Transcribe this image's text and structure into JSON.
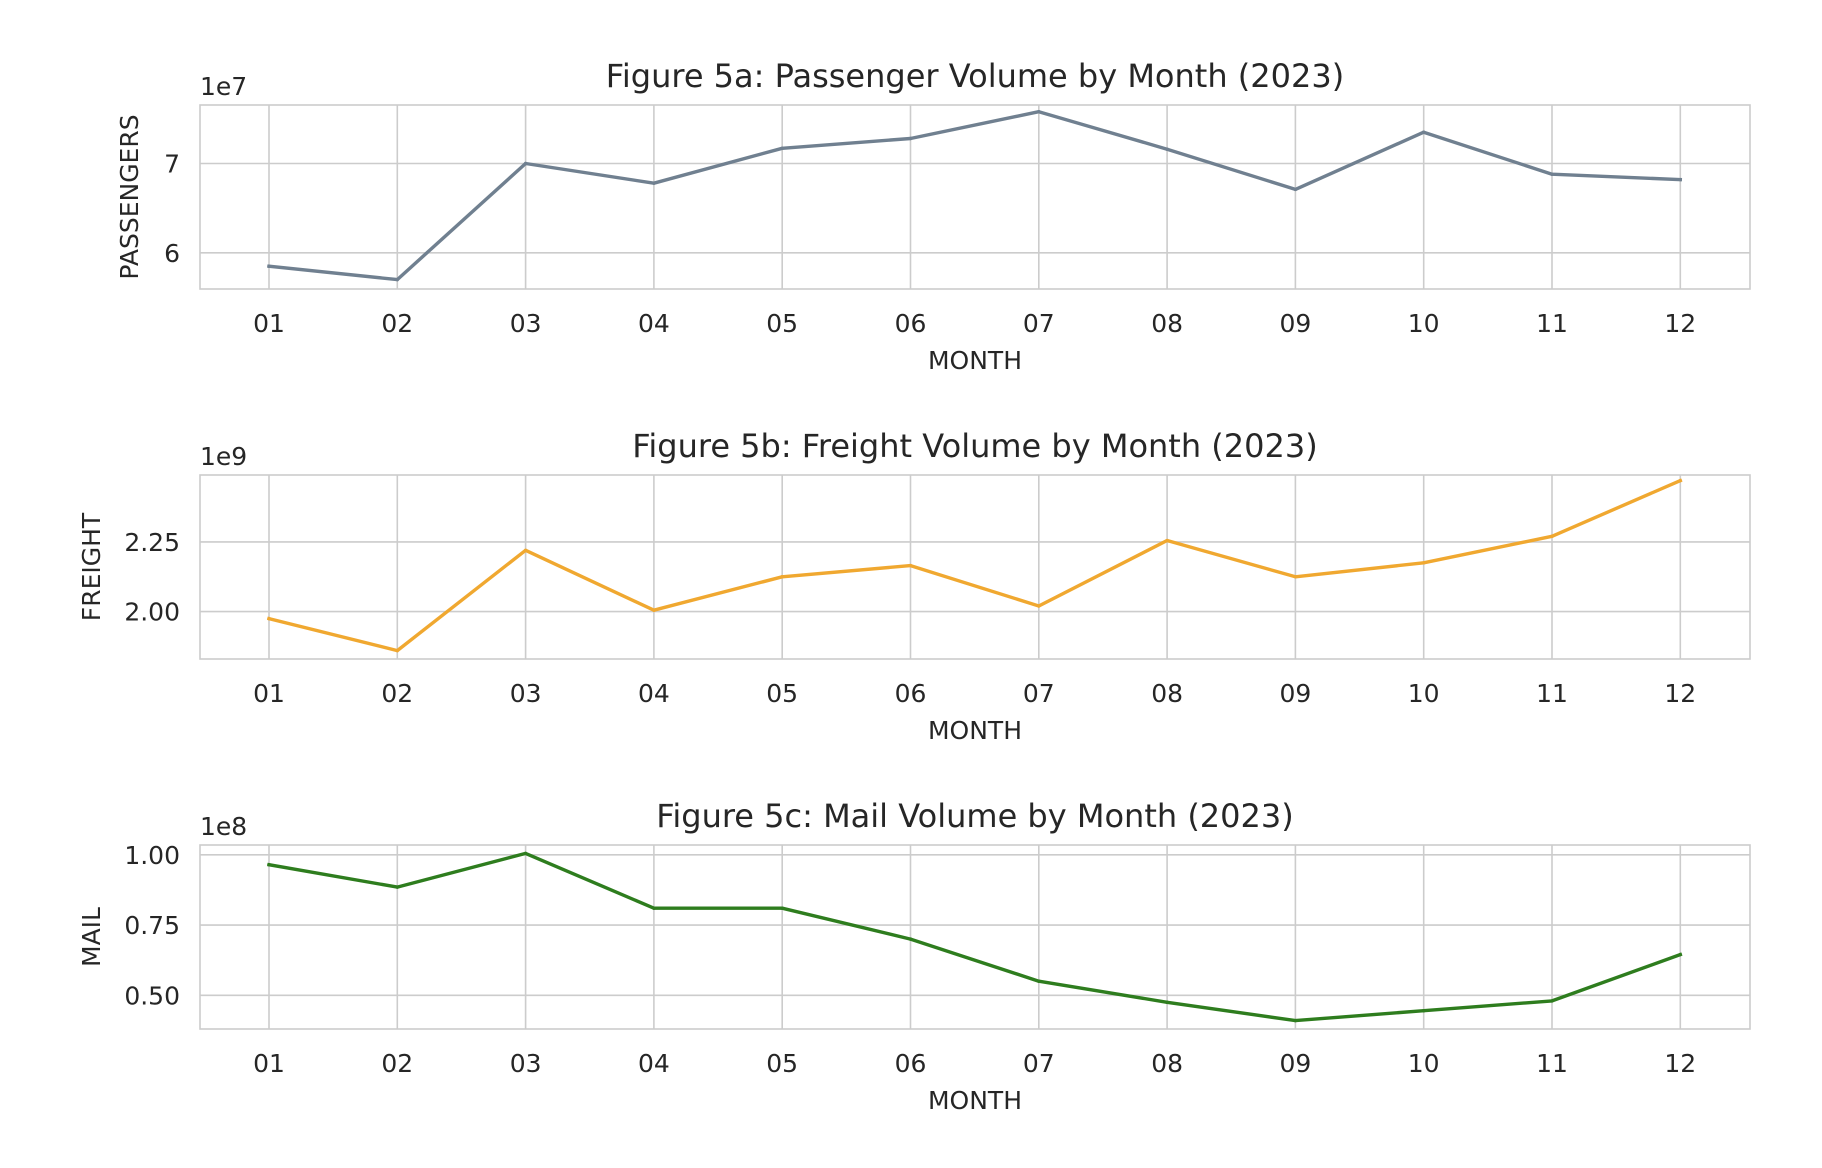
{
  "chart_data": [
    {
      "type": "line",
      "title": "Figure 5a: Passenger Volume by Month (2023)",
      "xlabel": "MONTH",
      "ylabel": "PASSENGERS",
      "offset_label": "1e7",
      "scale": 10000000,
      "categories": [
        "01",
        "02",
        "03",
        "04",
        "05",
        "06",
        "07",
        "08",
        "09",
        "10",
        "11",
        "12"
      ],
      "series": [
        {
          "values": [
            58500000,
            57000000,
            70000000,
            67800000,
            71700000,
            72800000,
            75800000,
            71600000,
            67100000,
            73500000,
            68800000,
            68200000
          ]
        }
      ],
      "yticks": [
        60000000,
        70000000
      ],
      "ytick_labels": [
        "6",
        "7"
      ],
      "ylim": [
        55950000,
        76550000
      ],
      "color": "#708090",
      "grid": true,
      "legend": "none"
    },
    {
      "type": "line",
      "title": "Figure 5b: Freight Volume by Month (2023)",
      "xlabel": "MONTH",
      "ylabel": "FREIGHT",
      "offset_label": "1e9",
      "scale": 1000000000,
      "categories": [
        "01",
        "02",
        "03",
        "04",
        "05",
        "06",
        "07",
        "08",
        "09",
        "10",
        "11",
        "12"
      ],
      "series": [
        {
          "values": [
            1975000000,
            1860000000,
            2220000000,
            2005000000,
            2125000000,
            2165000000,
            2020000000,
            2255000000,
            2125000000,
            2175000000,
            2270000000,
            2470000000
          ]
        }
      ],
      "yticks": [
        2000000000,
        2250000000
      ],
      "ytick_labels": [
        "2.00",
        "2.25"
      ],
      "ylim": [
        1830000000,
        2490000000
      ],
      "color": "#f0a830",
      "grid": true,
      "legend": "none"
    },
    {
      "type": "line",
      "title": "Figure 5c: Mail Volume by Month (2023)",
      "xlabel": "MONTH",
      "ylabel": "MAIL",
      "offset_label": "1e8",
      "scale": 100000000,
      "categories": [
        "01",
        "02",
        "03",
        "04",
        "05",
        "06",
        "07",
        "08",
        "09",
        "10",
        "11",
        "12"
      ],
      "series": [
        {
          "values": [
            96500000,
            88500000,
            100500000,
            81000000,
            81000000,
            70000000,
            55000000,
            47500000,
            41000000,
            44500000,
            48000000,
            64500000
          ]
        }
      ],
      "yticks": [
        50000000,
        75000000,
        100000000
      ],
      "ytick_labels": [
        "0.50",
        "0.75",
        "1.00"
      ],
      "ylim": [
        38000000,
        103500000
      ],
      "color": "#2e7d1e",
      "grid": true,
      "legend": "none"
    }
  ]
}
